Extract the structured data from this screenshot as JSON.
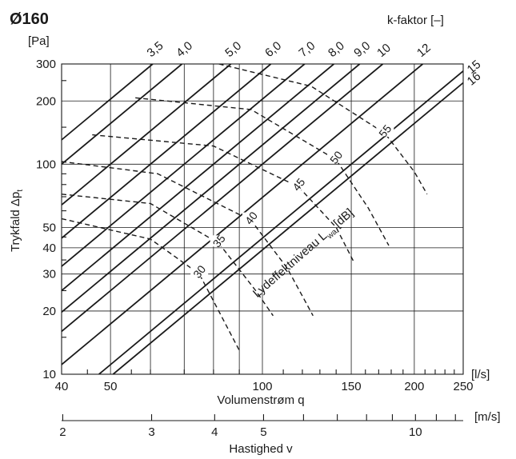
{
  "chart_data": {
    "type": "line",
    "title": "Ø160",
    "ylabel": "Trykfald Δp",
    "ylabel_sub": "t",
    "yunit": "[Pa]",
    "xlabel": "Volumenstrøm q",
    "xunit": "[l/s]",
    "x2label": "Hastighed v",
    "x2unit": "[m/s]",
    "klabel": "k-faktor [–]",
    "x_scale": "log",
    "y_scale": "log",
    "xlim": [
      40,
      250
    ],
    "ylim": [
      10,
      300
    ],
    "x_ticks": [
      40,
      50,
      100,
      150,
      200,
      250
    ],
    "y_ticks": [
      10,
      20,
      30,
      40,
      50,
      100,
      200,
      300
    ],
    "x2_ticks": [
      2,
      3,
      4,
      5,
      10
    ],
    "sound_label": "Lydeffektniveau L",
    "sound_sub": "wa",
    "sound_unit": "[dB]",
    "k_factors": [
      {
        "label": "3,5",
        "k": 3.5
      },
      {
        "label": "4,0",
        "k": 4.0
      },
      {
        "label": "5,0",
        "k": 5.0
      },
      {
        "label": "6,0",
        "k": 6.0
      },
      {
        "label": "7,0",
        "k": 7.0
      },
      {
        "label": "8,0",
        "k": 8.0
      },
      {
        "label": "9,0",
        "k": 9.0
      },
      {
        "label": "10",
        "k": 10
      },
      {
        "label": "12",
        "k": 12
      },
      {
        "label": "15",
        "k": 15
      },
      {
        "label": "16",
        "k": 16
      }
    ],
    "sound_levels": [
      {
        "label": "30",
        "x": [
          40,
          60,
          75,
          90
        ],
        "y": [
          55,
          44,
          30,
          13
        ]
      },
      {
        "label": "35",
        "x": [
          40,
          60,
          82,
          97,
          105
        ],
        "y": [
          72,
          65,
          42,
          25,
          19
        ]
      },
      {
        "label": "40",
        "x": [
          40,
          62,
          95,
          112,
          126
        ],
        "y": [
          103,
          90,
          54,
          32,
          19
        ]
      },
      {
        "label": "45",
        "x": [
          46,
          80,
          118,
          140,
          152
        ],
        "y": [
          138,
          122,
          78,
          50,
          34
        ]
      },
      {
        "label": "50",
        "x": [
          56,
          95,
          140,
          162,
          178
        ],
        "y": [
          207,
          182,
          105,
          62,
          41
        ]
      },
      {
        "label": "55",
        "x": [
          82,
          125,
          175,
          200,
          212
        ],
        "y": [
          300,
          235,
          140,
          92,
          72
        ]
      }
    ]
  }
}
